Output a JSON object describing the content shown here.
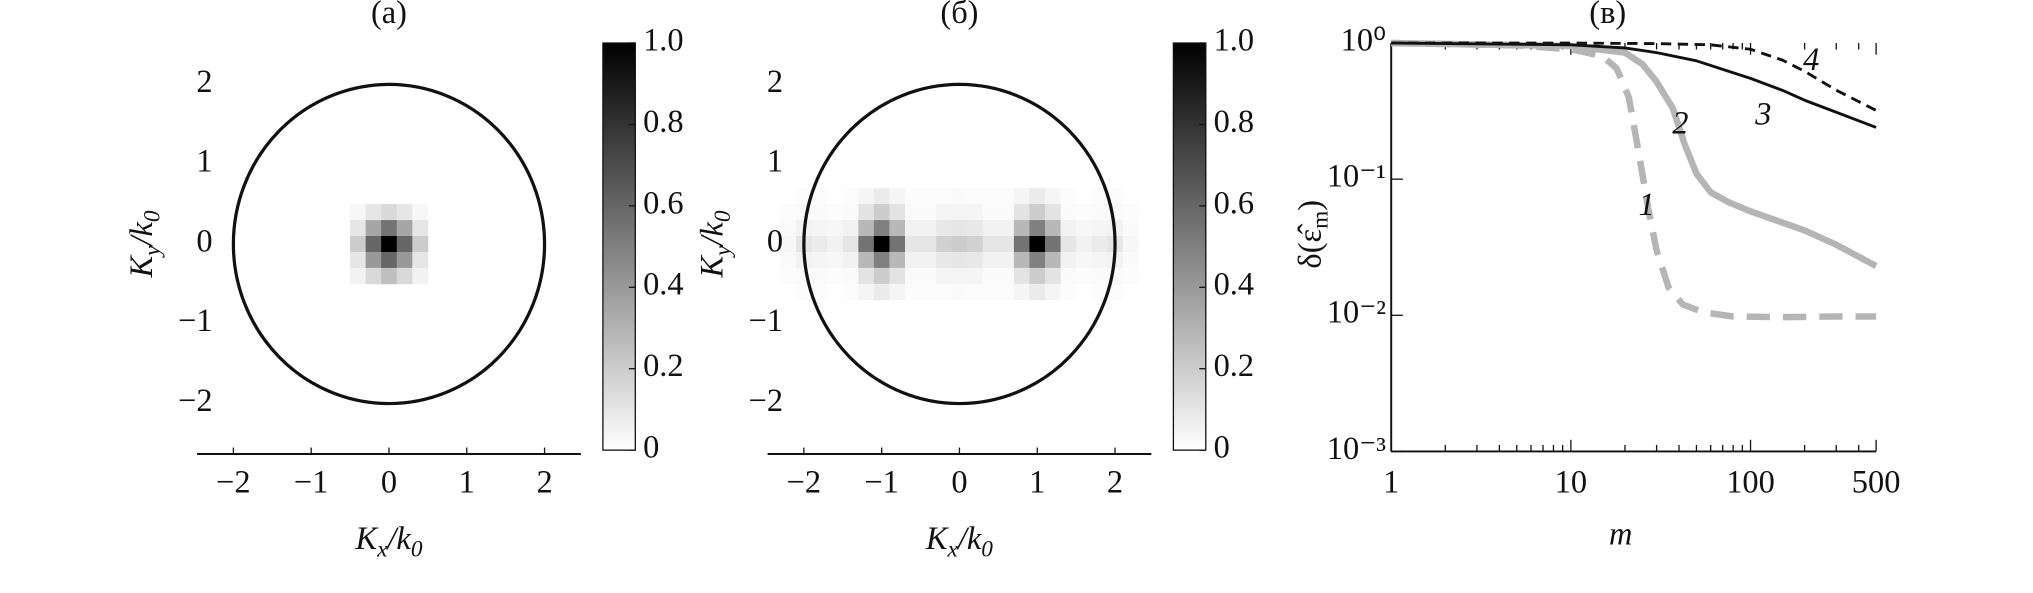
{
  "chart_data": [
    {
      "type": "heatmap",
      "title": "(а)",
      "x_label": [
        "K",
        "x",
        "/k",
        "0"
      ],
      "y_label": [
        "K",
        "y",
        "/k",
        "0"
      ],
      "xlim": [
        -2.5,
        2.5
      ],
      "ylim": [
        -2.6,
        2.6
      ],
      "xticks": [
        {
          "value": -2,
          "label": "−2"
        },
        {
          "value": -1,
          "label": "−1"
        },
        0,
        1,
        2
      ],
      "yticks": [
        {
          "value": -2,
          "label": "−2"
        },
        {
          "value": -1,
          "label": "−1"
        },
        0,
        1,
        2
      ],
      "circle_radius": 2,
      "x": [
        -0.4,
        -0.2,
        0,
        0.2,
        0.4
      ],
      "y": [
        0.4,
        0.2,
        0,
        -0.2,
        -0.4
      ],
      "values": [
        [
          0.03,
          0.1,
          0.15,
          0.1,
          0.03
        ],
        [
          0.1,
          0.35,
          0.55,
          0.35,
          0.1
        ],
        [
          0.2,
          0.6,
          1.0,
          0.6,
          0.2
        ],
        [
          0.1,
          0.4,
          0.6,
          0.4,
          0.1
        ],
        [
          0.05,
          0.15,
          0.25,
          0.15,
          0.05
        ]
      ],
      "clim": [
        0,
        1
      ],
      "colorbar_ticks": [
        0,
        0.2,
        0.4,
        0.6,
        0.8,
        {
          "value": 1,
          "label": "1.0"
        }
      ]
    },
    {
      "type": "heatmap",
      "title": "(б)",
      "x_label": [
        "K",
        "x",
        "/k",
        "0"
      ],
      "y_label": [
        "K",
        "y",
        "/k",
        "0"
      ],
      "xlim": [
        -2.5,
        2.5
      ],
      "ylim": [
        -2.6,
        2.6
      ],
      "xticks": [
        {
          "value": -2,
          "label": "−2"
        },
        {
          "value": -1,
          "label": "−1"
        },
        0,
        1,
        2
      ],
      "yticks": [
        {
          "value": -2,
          "label": "−2"
        },
        {
          "value": -1,
          "label": "−1"
        },
        0,
        1,
        2
      ],
      "circle_radius": 2,
      "x": [
        -2.2,
        -2.0,
        -1.8,
        -1.6,
        -1.4,
        -1.2,
        -1.0,
        -0.8,
        -0.6,
        -0.4,
        -0.2,
        0,
        0.2,
        0.4,
        0.6,
        0.8,
        1.0,
        1.2,
        1.4,
        1.6,
        1.8,
        2.0,
        2.2
      ],
      "y": [
        0.6,
        0.4,
        0.2,
        0,
        -0.2,
        -0.4,
        -0.6
      ],
      "values": [
        [
          0,
          0.01,
          0.01,
          0,
          0.01,
          0.04,
          0.08,
          0.04,
          0.01,
          0.01,
          0.01,
          0.02,
          0.01,
          0.01,
          0.01,
          0.04,
          0.08,
          0.04,
          0.01,
          0,
          0.01,
          0.01,
          0
        ],
        [
          0.01,
          0.02,
          0.02,
          0.01,
          0.02,
          0.11,
          0.2,
          0.11,
          0.02,
          0.02,
          0.04,
          0.04,
          0.04,
          0.02,
          0.02,
          0.11,
          0.2,
          0.11,
          0.02,
          0.01,
          0.02,
          0.02,
          0.01
        ],
        [
          0.02,
          0.05,
          0.04,
          0.03,
          0.05,
          0.28,
          0.5,
          0.28,
          0.05,
          0.05,
          0.09,
          0.1,
          0.09,
          0.05,
          0.05,
          0.28,
          0.5,
          0.28,
          0.05,
          0.03,
          0.04,
          0.05,
          0.02
        ],
        [
          0.03,
          0.1,
          0.08,
          0.05,
          0.1,
          0.55,
          1.0,
          0.55,
          0.1,
          0.1,
          0.18,
          0.2,
          0.18,
          0.1,
          0.1,
          0.55,
          1.0,
          0.55,
          0.1,
          0.05,
          0.08,
          0.1,
          0.03
        ],
        [
          0.02,
          0.05,
          0.04,
          0.03,
          0.05,
          0.28,
          0.5,
          0.28,
          0.05,
          0.05,
          0.09,
          0.1,
          0.09,
          0.05,
          0.05,
          0.28,
          0.5,
          0.28,
          0.05,
          0.03,
          0.04,
          0.05,
          0.02
        ],
        [
          0.01,
          0.02,
          0.02,
          0.01,
          0.02,
          0.11,
          0.2,
          0.11,
          0.02,
          0.02,
          0.04,
          0.04,
          0.04,
          0.02,
          0.02,
          0.11,
          0.2,
          0.11,
          0.02,
          0.01,
          0.02,
          0.02,
          0.01
        ],
        [
          0,
          0.01,
          0.01,
          0,
          0.01,
          0.04,
          0.08,
          0.04,
          0.01,
          0.01,
          0.01,
          0.02,
          0.01,
          0.01,
          0.01,
          0.04,
          0.08,
          0.04,
          0.01,
          0,
          0.01,
          0.01,
          0
        ]
      ],
      "clim": [
        0,
        1
      ],
      "colorbar_ticks": [
        0,
        0.2,
        0.4,
        0.6,
        0.8,
        {
          "value": 1,
          "label": "1.0"
        }
      ]
    },
    {
      "type": "line",
      "title": "(в)",
      "x_label": "m",
      "y_label": [
        "δ(ε̂",
        "m",
        ")"
      ],
      "log_x": true,
      "log_y": true,
      "xlim": [
        1,
        500
      ],
      "ylim": [
        0.001,
        1
      ],
      "xticks": [
        1,
        10,
        100,
        500
      ],
      "xminor": [
        2,
        3,
        4,
        5,
        6,
        7,
        8,
        9,
        20,
        30,
        40,
        50,
        60,
        70,
        80,
        90,
        200,
        300,
        400
      ],
      "yticks": [
        {
          "value": 1,
          "label": "10⁰"
        },
        {
          "value": 0.1,
          "label": "10⁻¹"
        },
        {
          "value": 0.01,
          "label": "10⁻²"
        },
        {
          "value": 0.001,
          "label": "10⁻³"
        }
      ],
      "series": [
        {
          "name": "1",
          "color": "#b5b5b5",
          "dashed": true,
          "x": [
            1,
            5,
            10,
            15,
            18,
            21,
            24,
            27,
            30,
            35,
            42,
            55,
            80,
            150,
            300,
            500
          ],
          "values": [
            1,
            0.96,
            0.9,
            0.8,
            0.65,
            0.4,
            0.15,
            0.06,
            0.03,
            0.016,
            0.012,
            0.0105,
            0.0098,
            0.0097,
            0.0098,
            0.0098
          ]
        },
        {
          "name": "2",
          "color": "#b5b5b5",
          "dashed": false,
          "x": [
            1,
            10,
            20,
            25,
            30,
            37,
            43,
            50,
            60,
            75,
            100,
            200,
            300,
            500
          ],
          "values": [
            1,
            0.95,
            0.85,
            0.7,
            0.52,
            0.33,
            0.18,
            0.11,
            0.08,
            0.068,
            0.058,
            0.042,
            0.033,
            0.023
          ]
        },
        {
          "name": "3",
          "color": "#111111",
          "dashed": false,
          "x": [
            1,
            10,
            20,
            30,
            50,
            70,
            100,
            150,
            200,
            300,
            500
          ],
          "values": [
            1,
            0.97,
            0.92,
            0.85,
            0.74,
            0.64,
            0.55,
            0.45,
            0.38,
            0.31,
            0.24
          ]
        },
        {
          "name": "4",
          "color": "#111111",
          "dashed": true,
          "x": [
            1,
            10,
            30,
            60,
            100,
            150,
            200,
            300,
            500
          ],
          "values": [
            1,
            1,
            0.99,
            0.97,
            0.9,
            0.75,
            0.62,
            0.45,
            0.32
          ]
        }
      ]
    }
  ]
}
